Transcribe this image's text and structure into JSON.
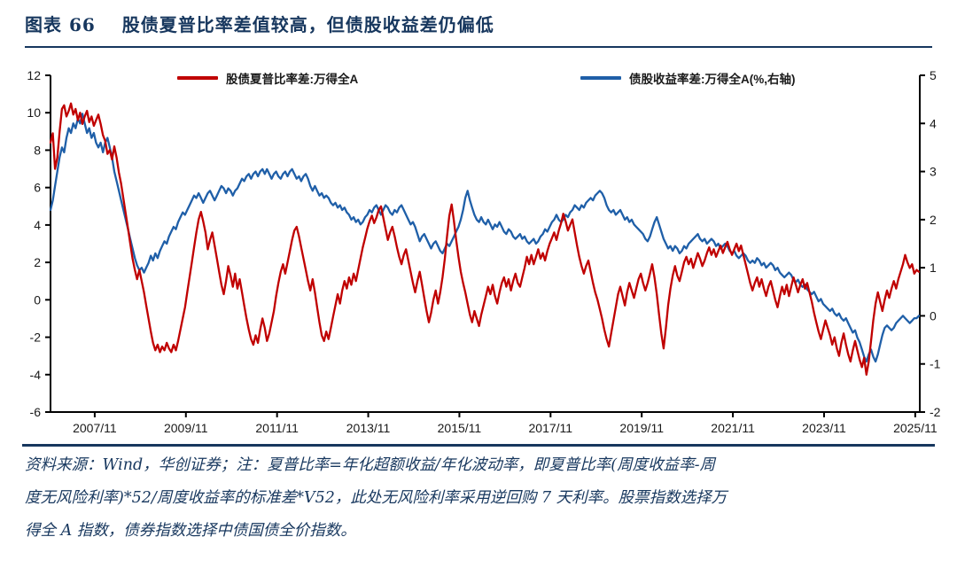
{
  "page": {
    "figure_label": "图表 66",
    "title_text": "股债夏普比率差值较高，但债股收益差仍偏低"
  },
  "footer": {
    "lines": [
      "资料来源：Wind，华创证券；注：夏普比率=年化超额收益/年化波动率，即夏普比率(周度收益率-周",
      "度无风险利率)*52/周度收益率的标准差*V52，此处无风险利率采用逆回购 7 天利率。股票指数选择万",
      "得全 A 指数，债券指数选择中债国债全价指数。"
    ]
  },
  "colors": {
    "accent_navy": "#17375E",
    "red_series": "#C00000",
    "blue_series": "#1F5FA8",
    "axis": "#000000"
  },
  "chart_data": {
    "type": "line",
    "title": "",
    "grid": false,
    "legend_position": "top-inside",
    "legend": [
      {
        "label": "股债夏普比率差:万得全A",
        "color": "#C00000",
        "axis": "left"
      },
      {
        "label": "债股收益率差:万得全A(%,右轴)",
        "color": "#1F5FA8",
        "axis": "right"
      }
    ],
    "x_axis": {
      "domain": [
        2006.9,
        2025.97
      ],
      "ticks": [
        {
          "label": "2007/11",
          "year": 2007.87
        },
        {
          "label": "2009/11",
          "year": 2009.87
        },
        {
          "label": "2011/11",
          "year": 2011.87
        },
        {
          "label": "2013/11",
          "year": 2013.87
        },
        {
          "label": "2015/11",
          "year": 2015.87
        },
        {
          "label": "2017/11",
          "year": 2017.87
        },
        {
          "label": "2019/11",
          "year": 2019.87
        },
        {
          "label": "2021/11",
          "year": 2021.87
        },
        {
          "label": "2023/11",
          "year": 2023.87
        },
        {
          "label": "2025/11",
          "year": 2025.87
        }
      ]
    },
    "left_axis": {
      "range": [
        -6,
        12
      ],
      "ticks": [
        12,
        10,
        8,
        6,
        4,
        2,
        0,
        -2,
        -4,
        -6
      ]
    },
    "right_axis": {
      "range": [
        -2,
        5
      ],
      "ticks": [
        5,
        4,
        3,
        2,
        1,
        0,
        -1,
        -2
      ]
    },
    "series": [
      {
        "name": "债股收益率差:万得全A(%,右轴)",
        "data_name": "bond-equity-yield-gap-line",
        "axis": "right",
        "color": "#1F5FA8",
        "start_year": 2006.9,
        "step_years": 0.05,
        "values": [
          2.2,
          2.4,
          2.7,
          3.0,
          3.3,
          3.5,
          3.4,
          3.7,
          3.9,
          3.8,
          4.0,
          3.9,
          4.1,
          4.0,
          4.2,
          4.0,
          3.8,
          3.9,
          3.7,
          3.8,
          3.6,
          3.5,
          3.6,
          3.4,
          3.6,
          3.7,
          3.5,
          3.3,
          3.0,
          2.8,
          2.6,
          2.4,
          2.2,
          2.0,
          1.8,
          1.6,
          1.4,
          1.2,
          1.05,
          0.95,
          1.0,
          0.9,
          1.0,
          1.1,
          1.25,
          1.15,
          1.3,
          1.2,
          1.35,
          1.45,
          1.55,
          1.5,
          1.65,
          1.75,
          1.85,
          1.8,
          1.95,
          2.05,
          2.15,
          2.1,
          2.2,
          2.3,
          2.4,
          2.5,
          2.45,
          2.55,
          2.45,
          2.35,
          2.45,
          2.55,
          2.6,
          2.5,
          2.4,
          2.5,
          2.6,
          2.7,
          2.65,
          2.55,
          2.65,
          2.6,
          2.5,
          2.6,
          2.65,
          2.75,
          2.85,
          2.8,
          2.9,
          2.95,
          2.85,
          2.95,
          3.0,
          2.9,
          3.0,
          3.05,
          2.95,
          3.05,
          2.95,
          2.85,
          2.95,
          3.0,
          2.9,
          2.85,
          2.95,
          3.0,
          2.9,
          3.0,
          3.05,
          2.95,
          2.85,
          2.9,
          2.8,
          2.9,
          2.95,
          2.85,
          2.7,
          2.6,
          2.7,
          2.6,
          2.5,
          2.55,
          2.45,
          2.5,
          2.45,
          2.35,
          2.3,
          2.35,
          2.25,
          2.3,
          2.2,
          2.25,
          2.15,
          2.1,
          2.0,
          2.05,
          1.95,
          2.0,
          1.9,
          1.95,
          2.05,
          2.1,
          2.2,
          2.15,
          2.25,
          2.3,
          2.2,
          2.1,
          2.2,
          2.3,
          2.25,
          2.15,
          2.1,
          2.2,
          2.15,
          2.25,
          2.3,
          2.2,
          2.1,
          2.0,
          1.9,
          1.95,
          1.85,
          1.7,
          1.55,
          1.65,
          1.7,
          1.6,
          1.5,
          1.4,
          1.5,
          1.55,
          1.45,
          1.35,
          1.3,
          1.4,
          1.5,
          1.45,
          1.55,
          1.65,
          1.75,
          1.85,
          2.0,
          2.2,
          2.45,
          2.6,
          2.4,
          2.25,
          2.1,
          2.0,
          1.95,
          2.05,
          1.95,
          1.9,
          2.0,
          1.9,
          1.8,
          1.9,
          1.85,
          1.95,
          1.85,
          1.75,
          1.7,
          1.8,
          1.75,
          1.65,
          1.6,
          1.65,
          1.7,
          1.6,
          1.65,
          1.55,
          1.5,
          1.55,
          1.6,
          1.5,
          1.55,
          1.65,
          1.7,
          1.8,
          1.75,
          1.85,
          1.95,
          2.0,
          2.1,
          2.0,
          1.95,
          2.0,
          2.1,
          2.05,
          2.15,
          2.2,
          2.3,
          2.25,
          2.2,
          2.3,
          2.25,
          2.35,
          2.4,
          2.45,
          2.4,
          2.5,
          2.55,
          2.6,
          2.55,
          2.45,
          2.3,
          2.2,
          2.15,
          2.2,
          2.1,
          2.15,
          2.2,
          2.1,
          2.0,
          2.05,
          1.95,
          2.0,
          1.9,
          1.85,
          1.8,
          1.75,
          1.7,
          1.6,
          1.55,
          1.65,
          1.8,
          1.95,
          2.05,
          1.9,
          1.75,
          1.6,
          1.5,
          1.4,
          1.45,
          1.35,
          1.45,
          1.4,
          1.3,
          1.35,
          1.45,
          1.4,
          1.5,
          1.55,
          1.6,
          1.65,
          1.7,
          1.6,
          1.55,
          1.6,
          1.5,
          1.55,
          1.6,
          1.55,
          1.45,
          1.5,
          1.4,
          1.45,
          1.5,
          1.45,
          1.35,
          1.3,
          1.35,
          1.25,
          1.2,
          1.25,
          1.3,
          1.25,
          1.15,
          1.1,
          1.15,
          1.1,
          1.2,
          1.15,
          1.05,
          1.1,
          1.0,
          1.05,
          1.1,
          1.05,
          0.95,
          1.0,
          0.9,
          0.85,
          0.8,
          0.85,
          0.9,
          0.85,
          0.75,
          0.7,
          0.75,
          0.65,
          0.6,
          0.65,
          0.55,
          0.5,
          0.45,
          0.5,
          0.4,
          0.3,
          0.35,
          0.25,
          0.2,
          0.15,
          0.1,
          0.15,
          0.05,
          0.0,
          0.05,
          -0.05,
          -0.1,
          -0.05,
          -0.15,
          -0.25,
          -0.35,
          -0.3,
          -0.45,
          -0.55,
          -0.7,
          -0.85,
          -0.95,
          -0.8,
          -0.7,
          -0.85,
          -0.95,
          -0.8,
          -0.6,
          -0.4,
          -0.25,
          -0.2,
          -0.25,
          -0.3,
          -0.25,
          -0.15,
          -0.1,
          -0.05,
          0.0,
          -0.05,
          -0.1,
          -0.15,
          -0.1,
          -0.05,
          -0.05,
          0.0
        ]
      },
      {
        "name": "股债夏普比率差:万得全A",
        "data_name": "equity-bond-sharpe-gap-line",
        "axis": "left",
        "color": "#C00000",
        "start_year": 2006.9,
        "step_years": 0.05,
        "values": [
          8.4,
          8.9,
          7.0,
          7.6,
          9.0,
          10.2,
          10.4,
          9.8,
          10.1,
          10.5,
          9.9,
          10.2,
          9.6,
          10.0,
          9.4,
          9.8,
          10.1,
          9.5,
          9.8,
          9.3,
          9.6,
          9.9,
          9.4,
          8.8,
          8.5,
          7.8,
          8.0,
          7.5,
          8.2,
          7.6,
          6.8,
          6.2,
          5.4,
          4.6,
          3.8,
          3.0,
          2.2,
          1.6,
          1.1,
          1.6,
          1.0,
          0.4,
          -0.3,
          -1.0,
          -1.7,
          -2.3,
          -2.7,
          -2.4,
          -2.8,
          -2.5,
          -2.7,
          -2.3,
          -2.6,
          -2.8,
          -2.4,
          -2.7,
          -2.2,
          -1.6,
          -1.0,
          -0.4,
          0.4,
          1.2,
          2.0,
          2.8,
          3.6,
          4.3,
          4.7,
          4.2,
          3.6,
          2.7,
          3.2,
          3.6,
          2.9,
          2.2,
          1.5,
          0.8,
          0.3,
          1.0,
          1.8,
          1.3,
          0.7,
          1.4,
          0.6,
          1.1,
          0.4,
          -0.3,
          -1.0,
          -1.6,
          -2.1,
          -2.4,
          -1.9,
          -2.3,
          -1.6,
          -1.0,
          -1.5,
          -2.2,
          -1.8,
          -1.2,
          -0.6,
          0.2,
          0.9,
          1.5,
          1.9,
          1.4,
          2.0,
          2.6,
          3.2,
          3.7,
          3.9,
          3.4,
          2.8,
          2.2,
          1.6,
          1.0,
          0.5,
          1.1,
          0.4,
          -0.4,
          -1.2,
          -1.9,
          -2.2,
          -1.7,
          -2.1,
          -1.5,
          -0.9,
          -0.3,
          0.3,
          -0.2,
          0.5,
          1.0,
          0.6,
          1.2,
          0.8,
          1.4,
          1.0,
          1.6,
          2.2,
          2.8,
          3.3,
          3.8,
          4.2,
          4.5,
          4.1,
          4.4,
          4.8,
          5.0,
          4.4,
          3.8,
          3.2,
          3.6,
          3.9,
          3.4,
          2.8,
          2.3,
          1.9,
          2.4,
          2.7,
          2.1,
          1.5,
          0.9,
          0.4,
          1.0,
          1.5,
          0.8,
          0.1,
          -0.6,
          -1.2,
          -0.7,
          0.0,
          0.5,
          -0.2,
          0.4,
          1.2,
          2.2,
          3.4,
          4.5,
          5.1,
          4.2,
          3.2,
          2.3,
          1.5,
          0.9,
          0.4,
          -0.2,
          -0.8,
          -1.2,
          -0.6,
          -1.0,
          -1.4,
          -0.8,
          -0.3,
          0.2,
          0.7,
          0.3,
          0.8,
          0.2,
          -0.2,
          0.4,
          0.9,
          1.2,
          0.7,
          1.1,
          0.5,
          1.0,
          1.4,
          0.9,
          0.7,
          1.2,
          1.7,
          2.3,
          1.9,
          2.4,
          1.9,
          2.3,
          2.7,
          2.2,
          2.5,
          2.1,
          2.6,
          3.0,
          3.3,
          3.6,
          3.2,
          3.7,
          4.1,
          4.6,
          4.2,
          3.7,
          4.0,
          4.3,
          3.6,
          2.9,
          2.3,
          1.8,
          1.4,
          1.8,
          2.1,
          1.5,
          0.9,
          0.4,
          0.0,
          -0.5,
          -1.0,
          -1.6,
          -2.1,
          -2.5,
          -1.8,
          -1.1,
          -0.4,
          0.3,
          0.7,
          0.2,
          -0.3,
          0.4,
          0.9,
          0.5,
          0.1,
          0.6,
          1.1,
          1.4,
          0.9,
          0.5,
          0.9,
          1.4,
          1.9,
          1.2,
          0.3,
          -0.8,
          -1.8,
          -2.6,
          -1.5,
          -0.3,
          0.6,
          1.3,
          1.8,
          1.3,
          1.0,
          1.5,
          2.0,
          2.3,
          1.9,
          2.2,
          1.7,
          2.1,
          2.5,
          2.2,
          1.8,
          2.1,
          2.5,
          2.8,
          2.4,
          2.7,
          2.3,
          2.6,
          2.9,
          2.5,
          2.8,
          3.1,
          2.7,
          2.4,
          2.7,
          3.0,
          2.6,
          2.9,
          2.4,
          1.9,
          1.4,
          0.9,
          0.5,
          0.9,
          1.2,
          0.7,
          1.1,
          0.6,
          0.2,
          0.7,
          1.0,
          0.5,
          0.0,
          -0.4,
          0.2,
          0.7,
          0.3,
          0.8,
          0.2,
          0.7,
          1.2,
          0.8,
          0.4,
          0.8,
          1.1,
          0.6,
          0.9,
          0.4,
          -0.1,
          -0.7,
          -1.2,
          -1.7,
          -2.1,
          -1.6,
          -1.1,
          -1.5,
          -1.9,
          -2.4,
          -2.0,
          -2.6,
          -3.0,
          -2.3,
          -1.8,
          -2.4,
          -2.9,
          -3.3,
          -2.7,
          -2.2,
          -2.7,
          -3.2,
          -3.6,
          -3.1,
          -4.0,
          -3.3,
          -2.2,
          -1.1,
          -0.2,
          0.4,
          -0.1,
          -0.6,
          0.0,
          0.5,
          0.1,
          0.6,
          1.0,
          0.6,
          1.1,
          1.5,
          1.9,
          2.4,
          2.0,
          1.7,
          1.9,
          1.4,
          1.6,
          1.5
        ]
      }
    ]
  }
}
